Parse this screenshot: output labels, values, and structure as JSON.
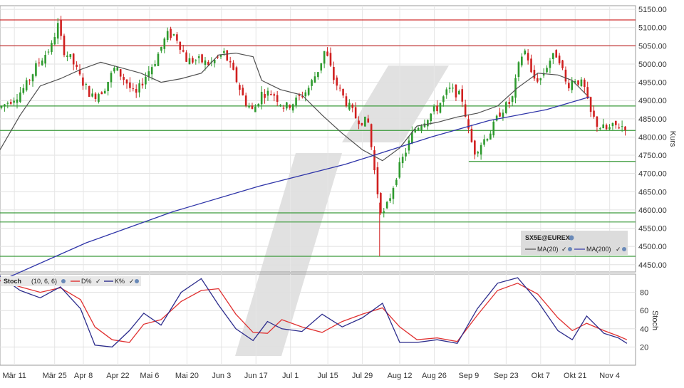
{
  "chart_data": [
    {
      "type": "candlestick",
      "symbol": "SX5E@EUREX",
      "ylabel": "Kurs",
      "ylim": [
        4430,
        5160
      ],
      "yticks": [
        4450,
        4500,
        4550,
        4600,
        4650,
        4700,
        4750,
        4800,
        4850,
        4900,
        4950,
        5000,
        5050,
        5100,
        5150
      ],
      "ytick_labels": [
        "4450.00",
        "4500.00",
        "4550.00",
        "4600.00",
        "4650.00",
        "4700.00",
        "4750.00",
        "4800.00",
        "4850.00",
        "4900.00",
        "4950.00",
        "5000.00",
        "5050.00",
        "5100.00",
        "5150.00"
      ],
      "legend": [
        {
          "label": "MA(20)",
          "color": "#505050"
        },
        {
          "label": "MA(200)",
          "color": "#2e34a8"
        }
      ],
      "horizontal_levels": [
        {
          "value": 5121,
          "color": "#d03030"
        },
        {
          "value": 5050,
          "color": "#c03030"
        },
        {
          "value": 4885,
          "color": "#3a9a3a"
        },
        {
          "value": 4818,
          "color": "#3a9a3a"
        },
        {
          "value": 4592,
          "color": "#3a9a3a"
        },
        {
          "value": 4567,
          "color": "#3a9a3a"
        },
        {
          "value": 4733,
          "color": "#3a9a3a",
          "x_start": "Sep 9"
        },
        {
          "value": 4473,
          "color": "#3a9a3a",
          "x_start": "Jul 22"
        }
      ],
      "ma20": [
        [
          0,
          4765
        ],
        [
          14,
          4860
        ],
        [
          28,
          4940
        ],
        [
          42,
          4960
        ],
        [
          56,
          4985
        ],
        [
          70,
          5005
        ],
        [
          84,
          4990
        ],
        [
          98,
          4975
        ],
        [
          112,
          4950
        ],
        [
          126,
          4960
        ],
        [
          140,
          4975
        ],
        [
          152,
          5025
        ],
        [
          164,
          5030
        ],
        [
          176,
          5020
        ],
        [
          182,
          4955
        ],
        [
          195,
          4930
        ],
        [
          210,
          4915
        ],
        [
          224,
          4860
        ],
        [
          238,
          4810
        ],
        [
          252,
          4765
        ],
        [
          266,
          4735
        ],
        [
          278,
          4770
        ],
        [
          290,
          4830
        ],
        [
          304,
          4840
        ],
        [
          318,
          4855
        ],
        [
          332,
          4865
        ],
        [
          346,
          4885
        ],
        [
          360,
          4935
        ],
        [
          374,
          4975
        ],
        [
          388,
          4970
        ],
        [
          398,
          4955
        ],
        [
          408,
          4915
        ]
      ],
      "ma200": [
        [
          0,
          4405
        ],
        [
          60,
          4510
        ],
        [
          120,
          4595
        ],
        [
          180,
          4665
        ],
        [
          240,
          4725
        ],
        [
          260,
          4750
        ],
        [
          300,
          4800
        ],
        [
          340,
          4845
        ],
        [
          380,
          4875
        ],
        [
          410,
          4910
        ]
      ]
    },
    {
      "type": "line",
      "title": "Stoch",
      "params": "(10, 6, 6)",
      "ylabel": "Stoch",
      "ylim": [
        0,
        100
      ],
      "yticks": [
        20,
        40,
        60,
        80
      ],
      "series": [
        {
          "name": "D%",
          "color": "#e03030",
          "points": [
            [
              0,
              93
            ],
            [
              14,
              86
            ],
            [
              28,
              80
            ],
            [
              42,
              85
            ],
            [
              56,
              72
            ],
            [
              66,
              42
            ],
            [
              78,
              28
            ],
            [
              90,
              25
            ],
            [
              100,
              45
            ],
            [
              112,
              50
            ],
            [
              126,
              70
            ],
            [
              140,
              82
            ],
            [
              152,
              84
            ],
            [
              164,
              56
            ],
            [
              176,
              36
            ],
            [
              186,
              35
            ],
            [
              196,
              50
            ],
            [
              210,
              42
            ],
            [
              224,
              36
            ],
            [
              238,
              48
            ],
            [
              252,
              56
            ],
            [
              266,
              63
            ],
            [
              278,
              42
            ],
            [
              290,
              28
            ],
            [
              304,
              30
            ],
            [
              318,
              26
            ],
            [
              332,
              55
            ],
            [
              346,
              82
            ],
            [
              360,
              90
            ],
            [
              374,
              78
            ],
            [
              388,
              52
            ],
            [
              398,
              38
            ],
            [
              408,
              46
            ],
            [
              420,
              38
            ],
            [
              430,
              32
            ],
            [
              436,
              28
            ]
          ]
        },
        {
          "name": "K%",
          "color": "#2c2c8c",
          "points": [
            [
              0,
              98
            ],
            [
              14,
              82
            ],
            [
              28,
              74
            ],
            [
              42,
              86
            ],
            [
              56,
              62
            ],
            [
              66,
              22
            ],
            [
              78,
              20
            ],
            [
              90,
              38
            ],
            [
              100,
              57
            ],
            [
              112,
              44
            ],
            [
              126,
              80
            ],
            [
              140,
              95
            ],
            [
              152,
              66
            ],
            [
              164,
              40
            ],
            [
              176,
              27
            ],
            [
              186,
              48
            ],
            [
              196,
              40
            ],
            [
              210,
              37
            ],
            [
              224,
              56
            ],
            [
              238,
              42
            ],
            [
              252,
              52
            ],
            [
              266,
              68
            ],
            [
              278,
              25
            ],
            [
              290,
              25
            ],
            [
              304,
              28
            ],
            [
              318,
              24
            ],
            [
              332,
              62
            ],
            [
              346,
              90
            ],
            [
              360,
              96
            ],
            [
              374,
              70
            ],
            [
              388,
              38
            ],
            [
              398,
              28
            ],
            [
              408,
              54
            ],
            [
              420,
              35
            ],
            [
              430,
              30
            ],
            [
              436,
              24
            ]
          ]
        }
      ]
    }
  ],
  "x_axis": {
    "domain": [
      0,
      442
    ],
    "labels": [
      {
        "x": 10,
        "text": "Mär 11"
      },
      {
        "x": 38,
        "text": "Mär 25"
      },
      {
        "x": 58,
        "text": "Apr 8"
      },
      {
        "x": 82,
        "text": "Apr 22"
      },
      {
        "x": 104,
        "text": "Mai 6"
      },
      {
        "x": 130,
        "text": "Mai 20"
      },
      {
        "x": 154,
        "text": "Jun 3"
      },
      {
        "x": 178,
        "text": "Jun 17"
      },
      {
        "x": 202,
        "text": "Jul 1"
      },
      {
        "x": 228,
        "text": "Jul 15"
      },
      {
        "x": 252,
        "text": "Jul 29"
      },
      {
        "x": 278,
        "text": "Aug 12"
      },
      {
        "x": 302,
        "text": "Aug 26"
      },
      {
        "x": 326,
        "text": "Sep 9"
      },
      {
        "x": 352,
        "text": "Sep 23"
      },
      {
        "x": 376,
        "text": "Okt 7"
      },
      {
        "x": 400,
        "text": "Okt 21"
      },
      {
        "x": 424,
        "text": "Nov 4"
      }
    ]
  }
}
